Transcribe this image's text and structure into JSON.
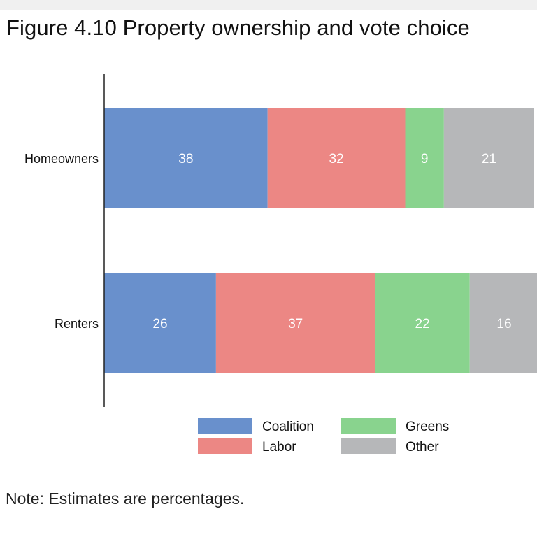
{
  "title": "Figure 4.10 Property ownership and vote choice",
  "note": "Note: Estimates are percentages.",
  "chart_data": {
    "type": "bar",
    "orientation": "horizontal",
    "stacked": true,
    "categories": [
      "Homeowners",
      "Renters"
    ],
    "series": [
      {
        "name": "Coalition",
        "color": "#6990cc",
        "values": [
          38,
          26
        ]
      },
      {
        "name": "Labor",
        "color": "#ec8784",
        "values": [
          32,
          37
        ]
      },
      {
        "name": "Greens",
        "color": "#89d38e",
        "values": [
          9,
          22
        ]
      },
      {
        "name": "Other",
        "color": "#b6b7b9",
        "values": [
          21,
          16
        ]
      }
    ],
    "xlim": [
      0,
      100
    ],
    "grid": false,
    "legend": "bottom"
  }
}
